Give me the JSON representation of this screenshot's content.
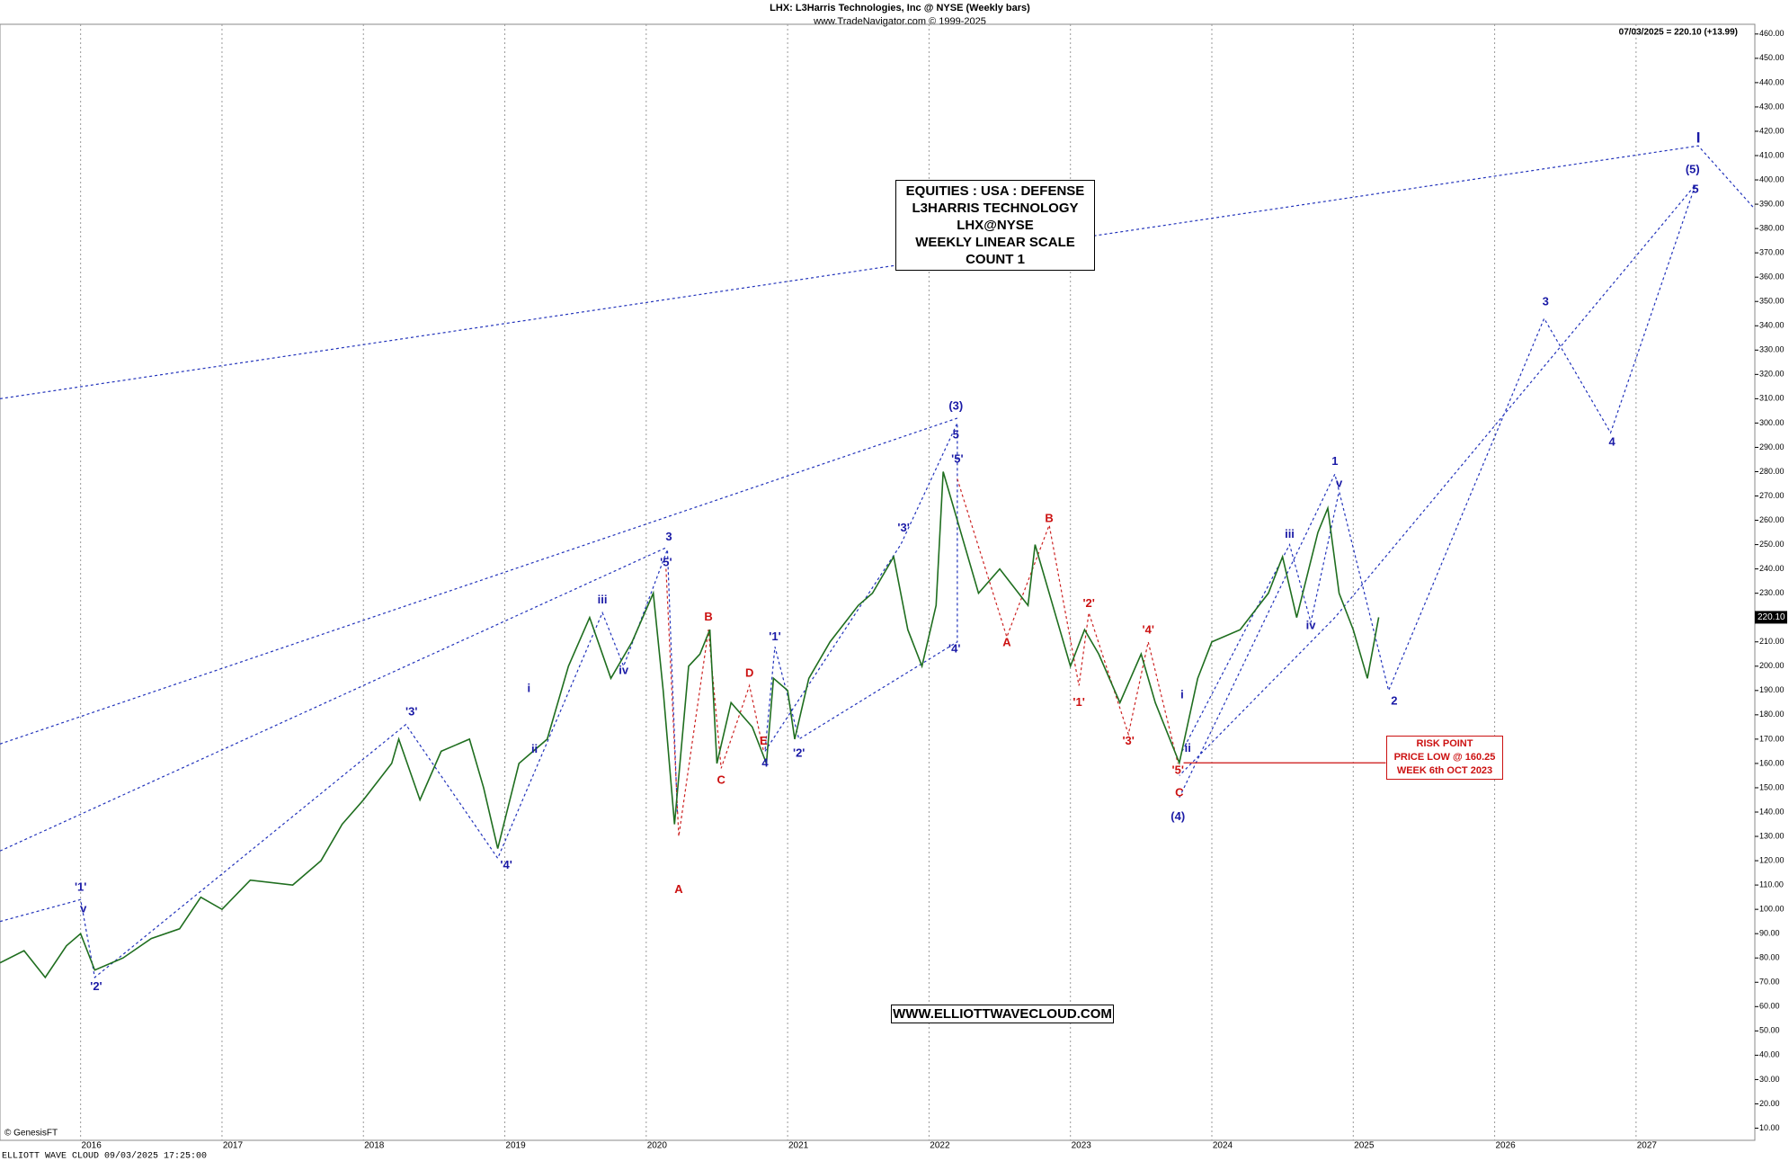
{
  "chart_data": {
    "type": "line",
    "title": "LHX:  L3Harris Technologies, Inc @ NYSE  (Weekly bars)",
    "subtitle": "www.TradeNavigator.com © 1999-2025",
    "last_quote": "07/03/2025 = 220.10 (+13.99)",
    "last_price_label": {
      "value": 220.1,
      "label": "220.10"
    },
    "copyright": "© GenesisFT",
    "footer": "ELLIOTT WAVE CLOUD   09/03/2025 17:25:00",
    "info_box": [
      "EQUITIES : USA : DEFENSE",
      "L3HARRIS TECHNOLOGY",
      "LHX@NYSE",
      "WEEKLY LINEAR SCALE",
      "COUNT 1"
    ],
    "website": "WWW.ELLIOTTWAVECLOUD.COM",
    "risk_box": [
      "RISK POINT",
      "PRICE LOW @ 160.25",
      "WEEK 6th OCT 2023"
    ],
    "risk_level": 160.25,
    "risk_start": 2023.8,
    "risk_end": 2025.23,
    "xlim": [
      2015.43,
      2027.84
    ],
    "ylim": [
      5,
      464
    ],
    "xticks": [
      2016,
      2017,
      2018,
      2019,
      2020,
      2021,
      2022,
      2023,
      2024,
      2025,
      2026,
      2027
    ],
    "yticks": [
      {
        "value": 10,
        "label": "10.00"
      },
      {
        "value": 20,
        "label": "20.00"
      },
      {
        "value": 30,
        "label": "30.00"
      },
      {
        "value": 40,
        "label": "40.00"
      },
      {
        "value": 50,
        "label": "50.00"
      },
      {
        "value": 60,
        "label": "60.00"
      },
      {
        "value": 70,
        "label": "70.00"
      },
      {
        "value": 80,
        "label": "80.00"
      },
      {
        "value": 90,
        "label": "90.00"
      },
      {
        "value": 100,
        "label": "100.00"
      },
      {
        "value": 110,
        "label": "110.00"
      },
      {
        "value": 120,
        "label": "120.00"
      },
      {
        "value": 130,
        "label": "130.00"
      },
      {
        "value": 140,
        "label": "140.00"
      },
      {
        "value": 150,
        "label": "150.00"
      },
      {
        "value": 160,
        "label": "160.00"
      },
      {
        "value": 170,
        "label": "170.00"
      },
      {
        "value": 180,
        "label": "180.00"
      },
      {
        "value": 190,
        "label": "190.00"
      },
      {
        "value": 200,
        "label": "200.00"
      },
      {
        "value": 210,
        "label": "210.00"
      },
      {
        "value": 220,
        "label": "220.00"
      },
      {
        "value": 230,
        "label": "230.00"
      },
      {
        "value": 240,
        "label": "240.00"
      },
      {
        "value": 250,
        "label": "250.00"
      },
      {
        "value": 260,
        "label": "260.00"
      },
      {
        "value": 270,
        "label": "270.00"
      },
      {
        "value": 280,
        "label": "280.00"
      },
      {
        "value": 290,
        "label": "290.00"
      },
      {
        "value": 300,
        "label": "300.00"
      },
      {
        "value": 310,
        "label": "310.00"
      },
      {
        "value": 320,
        "label": "320.00"
      },
      {
        "value": 330,
        "label": "330.00"
      },
      {
        "value": 340,
        "label": "340.00"
      },
      {
        "value": 350,
        "label": "350.00"
      },
      {
        "value": 360,
        "label": "360.00"
      },
      {
        "value": 370,
        "label": "370.00"
      },
      {
        "value": 380,
        "label": "380.00"
      },
      {
        "value": 390,
        "label": "390.00"
      },
      {
        "value": 400,
        "label": "400.00"
      },
      {
        "value": 410,
        "label": "410.00"
      },
      {
        "value": 420,
        "label": "420.00"
      },
      {
        "value": 430,
        "label": "430.00"
      },
      {
        "value": 440,
        "label": "440.00"
      },
      {
        "value": 450,
        "label": "450.00"
      },
      {
        "value": 460,
        "label": "460.00"
      }
    ],
    "grid": true,
    "series": [
      {
        "name": "LHX",
        "color": "#1f6e1f",
        "x": [
          2015.43,
          2015.6,
          2015.75,
          2015.9,
          2016.0,
          2016.1,
          2016.3,
          2016.5,
          2016.7,
          2016.85,
          2017.0,
          2017.2,
          2017.5,
          2017.7,
          2017.85,
          2018.0,
          2018.2,
          2018.25,
          2018.4,
          2018.55,
          2018.75,
          2018.85,
          2018.95,
          2019.1,
          2019.3,
          2019.45,
          2019.6,
          2019.75,
          2019.9,
          2020.05,
          2020.12,
          2020.2,
          2020.3,
          2020.38,
          2020.45,
          2020.5,
          2020.6,
          2020.75,
          2020.85,
          2020.9,
          2021.0,
          2021.05,
          2021.15,
          2021.3,
          2021.5,
          2021.6,
          2021.75,
          2021.85,
          2021.95,
          2022.05,
          2022.1,
          2022.2,
          2022.35,
          2022.5,
          2022.7,
          2022.75,
          2022.9,
          2023.0,
          2023.1,
          2023.2,
          2023.35,
          2023.5,
          2023.6,
          2023.77,
          2023.9,
          2024.0,
          2024.2,
          2024.4,
          2024.5,
          2024.6,
          2024.75,
          2024.82,
          2024.9,
          2025.0,
          2025.1,
          2025.18
        ],
        "values": [
          78,
          83,
          72,
          85,
          90,
          75,
          80,
          88,
          92,
          105,
          100,
          112,
          110,
          120,
          135,
          145,
          160,
          170,
          145,
          165,
          170,
          150,
          125,
          160,
          170,
          200,
          220,
          195,
          210,
          230,
          190,
          135,
          200,
          205,
          215,
          160,
          185,
          175,
          160,
          195,
          190,
          170,
          195,
          210,
          225,
          230,
          245,
          215,
          200,
          225,
          280,
          260,
          230,
          240,
          225,
          250,
          220,
          200,
          215,
          205,
          185,
          205,
          185,
          160.25,
          195,
          210,
          215,
          230,
          245,
          220,
          255,
          265,
          230,
          215,
          195,
          220.1
        ]
      }
    ],
    "wave_lines": [
      {
        "color": "#2233bb",
        "points": [
          [
            2015.43,
            310
          ],
          [
            2027.44,
            414
          ],
          [
            2027.84,
            388
          ]
        ]
      },
      {
        "color": "#2233bb",
        "points": [
          [
            2015.43,
            168
          ],
          [
            2022.2,
            302
          ]
        ]
      },
      {
        "color": "#2233bb",
        "points": [
          [
            2015.43,
            124
          ],
          [
            2020.15,
            249
          ]
        ]
      },
      {
        "color": "#2233bb",
        "points": [
          [
            2015.43,
            95
          ],
          [
            2016.0,
            104
          ],
          [
            2016.1,
            72
          ],
          [
            2018.3,
            176
          ],
          [
            2018.95,
            121
          ],
          [
            2019.69,
            222
          ],
          [
            2019.84,
            200
          ],
          [
            2020.15,
            248
          ],
          [
            2020.22,
            140
          ]
        ]
      },
      {
        "color": "#2233bb",
        "points": [
          [
            2020.84,
            165
          ],
          [
            2021.8,
            250
          ],
          [
            2022.2,
            300
          ],
          [
            2022.2,
            210
          ],
          [
            2021.08,
            170
          ],
          [
            2020.91,
            208
          ],
          [
            2020.84,
            165
          ]
        ]
      },
      {
        "color": "#2233bb",
        "points": [
          [
            2023.77,
            146
          ],
          [
            2024.87,
            279
          ],
          [
            2025.25,
            190
          ],
          [
            2026.35,
            343
          ],
          [
            2026.82,
            296
          ],
          [
            2027.42,
            398
          ],
          [
            2024.87,
            220
          ],
          [
            2023.77,
            155
          ]
        ]
      },
      {
        "color": "#2233bb",
        "points": [
          [
            2023.79,
            165
          ],
          [
            2024.55,
            250
          ],
          [
            2024.7,
            218
          ],
          [
            2024.9,
            272
          ]
        ]
      },
      {
        "color": "#cc2222",
        "points": [
          [
            2022.2,
            277
          ],
          [
            2022.55,
            212
          ],
          [
            2022.85,
            258
          ],
          [
            2023.06,
            192
          ],
          [
            2023.13,
            222
          ],
          [
            2023.41,
            172
          ],
          [
            2023.55,
            210
          ],
          [
            2023.76,
            160
          ]
        ]
      },
      {
        "color": "#cc2222",
        "points": [
          [
            2020.14,
            240
          ],
          [
            2020.23,
            130
          ],
          [
            2020.44,
            215
          ],
          [
            2020.53,
            158
          ],
          [
            2020.73,
            192
          ],
          [
            2020.83,
            165
          ]
        ]
      }
    ],
    "annotations": [
      {
        "text": "'1'",
        "x": 2016.0,
        "y": 109,
        "color": "#1a1aa6"
      },
      {
        "text": "v",
        "x": 2016.02,
        "y": 100,
        "color": "#1a1aa6"
      },
      {
        "text": "'2'",
        "x": 2016.11,
        "y": 68,
        "color": "#1a1aa6"
      },
      {
        "text": "'3'",
        "x": 2018.34,
        "y": 181,
        "color": "#1a1aa6"
      },
      {
        "text": "'4'",
        "x": 2019.01,
        "y": 118,
        "color": "#1a1aa6"
      },
      {
        "text": "i",
        "x": 2019.17,
        "y": 190.7,
        "color": "#1a1aa6"
      },
      {
        "text": "ii",
        "x": 2019.21,
        "y": 165.7,
        "color": "#1a1aa6"
      },
      {
        "text": "iii",
        "x": 2019.69,
        "y": 227,
        "color": "#1a1aa6"
      },
      {
        "text": "iv",
        "x": 2019.84,
        "y": 198,
        "color": "#1a1aa6"
      },
      {
        "text": "3",
        "x": 2020.16,
        "y": 253,
        "color": "#1a1aa6"
      },
      {
        "text": "'5'",
        "x": 2020.14,
        "y": 242.5,
        "color": "#1a1aa6"
      },
      {
        "text": "A",
        "x": 2020.23,
        "y": 108,
        "color": "#cc1111"
      },
      {
        "text": "B",
        "x": 2020.44,
        "y": 220,
        "color": "#cc1111"
      },
      {
        "text": "C",
        "x": 2020.53,
        "y": 153,
        "color": "#cc1111"
      },
      {
        "text": "D",
        "x": 2020.73,
        "y": 197,
        "color": "#cc1111"
      },
      {
        "text": "E",
        "x": 2020.83,
        "y": 169,
        "color": "#cc1111"
      },
      {
        "text": "4",
        "x": 2020.84,
        "y": 160,
        "color": "#1a1aa6"
      },
      {
        "text": "'1'",
        "x": 2020.91,
        "y": 212,
        "color": "#1a1aa6"
      },
      {
        "text": "'2'",
        "x": 2021.08,
        "y": 164,
        "color": "#1a1aa6"
      },
      {
        "text": "'3'",
        "x": 2021.82,
        "y": 256.7,
        "color": "#1a1aa6"
      },
      {
        "text": "'4'",
        "x": 2022.18,
        "y": 207,
        "color": "#1a1aa6"
      },
      {
        "text": "'5'",
        "x": 2022.2,
        "y": 285,
        "color": "#1a1aa6"
      },
      {
        "text": "5",
        "x": 2022.19,
        "y": 295,
        "color": "#1a1aa6"
      },
      {
        "text": "(3)",
        "x": 2022.19,
        "y": 306.7,
        "color": "#1a1aa6"
      },
      {
        "text": "A",
        "x": 2022.55,
        "y": 209.5,
        "color": "#cc1111"
      },
      {
        "text": "B",
        "x": 2022.85,
        "y": 260.5,
        "color": "#cc1111"
      },
      {
        "text": "'1'",
        "x": 2023.06,
        "y": 185,
        "color": "#cc1111"
      },
      {
        "text": "'2'",
        "x": 2023.13,
        "y": 225.6,
        "color": "#cc1111"
      },
      {
        "text": "'3'",
        "x": 2023.41,
        "y": 169,
        "color": "#cc1111"
      },
      {
        "text": "'4'",
        "x": 2023.55,
        "y": 214.7,
        "color": "#cc1111"
      },
      {
        "text": "'5'",
        "x": 2023.76,
        "y": 157,
        "color": "#cc1111"
      },
      {
        "text": "C",
        "x": 2023.77,
        "y": 147.7,
        "color": "#cc1111"
      },
      {
        "text": "(4)",
        "x": 2023.76,
        "y": 138,
        "color": "#1a1aa6"
      },
      {
        "text": "i",
        "x": 2023.79,
        "y": 188,
        "color": "#1a1aa6"
      },
      {
        "text": "ii",
        "x": 2023.83,
        "y": 166,
        "color": "#1a1aa6"
      },
      {
        "text": "iii",
        "x": 2024.55,
        "y": 254,
        "color": "#1a1aa6"
      },
      {
        "text": "iv",
        "x": 2024.7,
        "y": 216.6,
        "color": "#1a1aa6"
      },
      {
        "text": "v",
        "x": 2024.9,
        "y": 275,
        "color": "#1a1aa6"
      },
      {
        "text": "1",
        "x": 2024.87,
        "y": 284,
        "color": "#1a1aa6"
      },
      {
        "text": "2",
        "x": 2025.29,
        "y": 185.5,
        "color": "#1a1aa6"
      },
      {
        "text": "3",
        "x": 2026.36,
        "y": 349.6,
        "color": "#1a1aa6"
      },
      {
        "text": "4",
        "x": 2026.83,
        "y": 292,
        "color": "#1a1aa6"
      },
      {
        "text": "5",
        "x": 2027.42,
        "y": 396,
        "color": "#1a1aa6"
      },
      {
        "text": "(5)",
        "x": 2027.4,
        "y": 404,
        "color": "#1a1aa6"
      },
      {
        "text": "I",
        "x": 2027.44,
        "y": 417,
        "color": "#1a1aa6"
      }
    ]
  }
}
